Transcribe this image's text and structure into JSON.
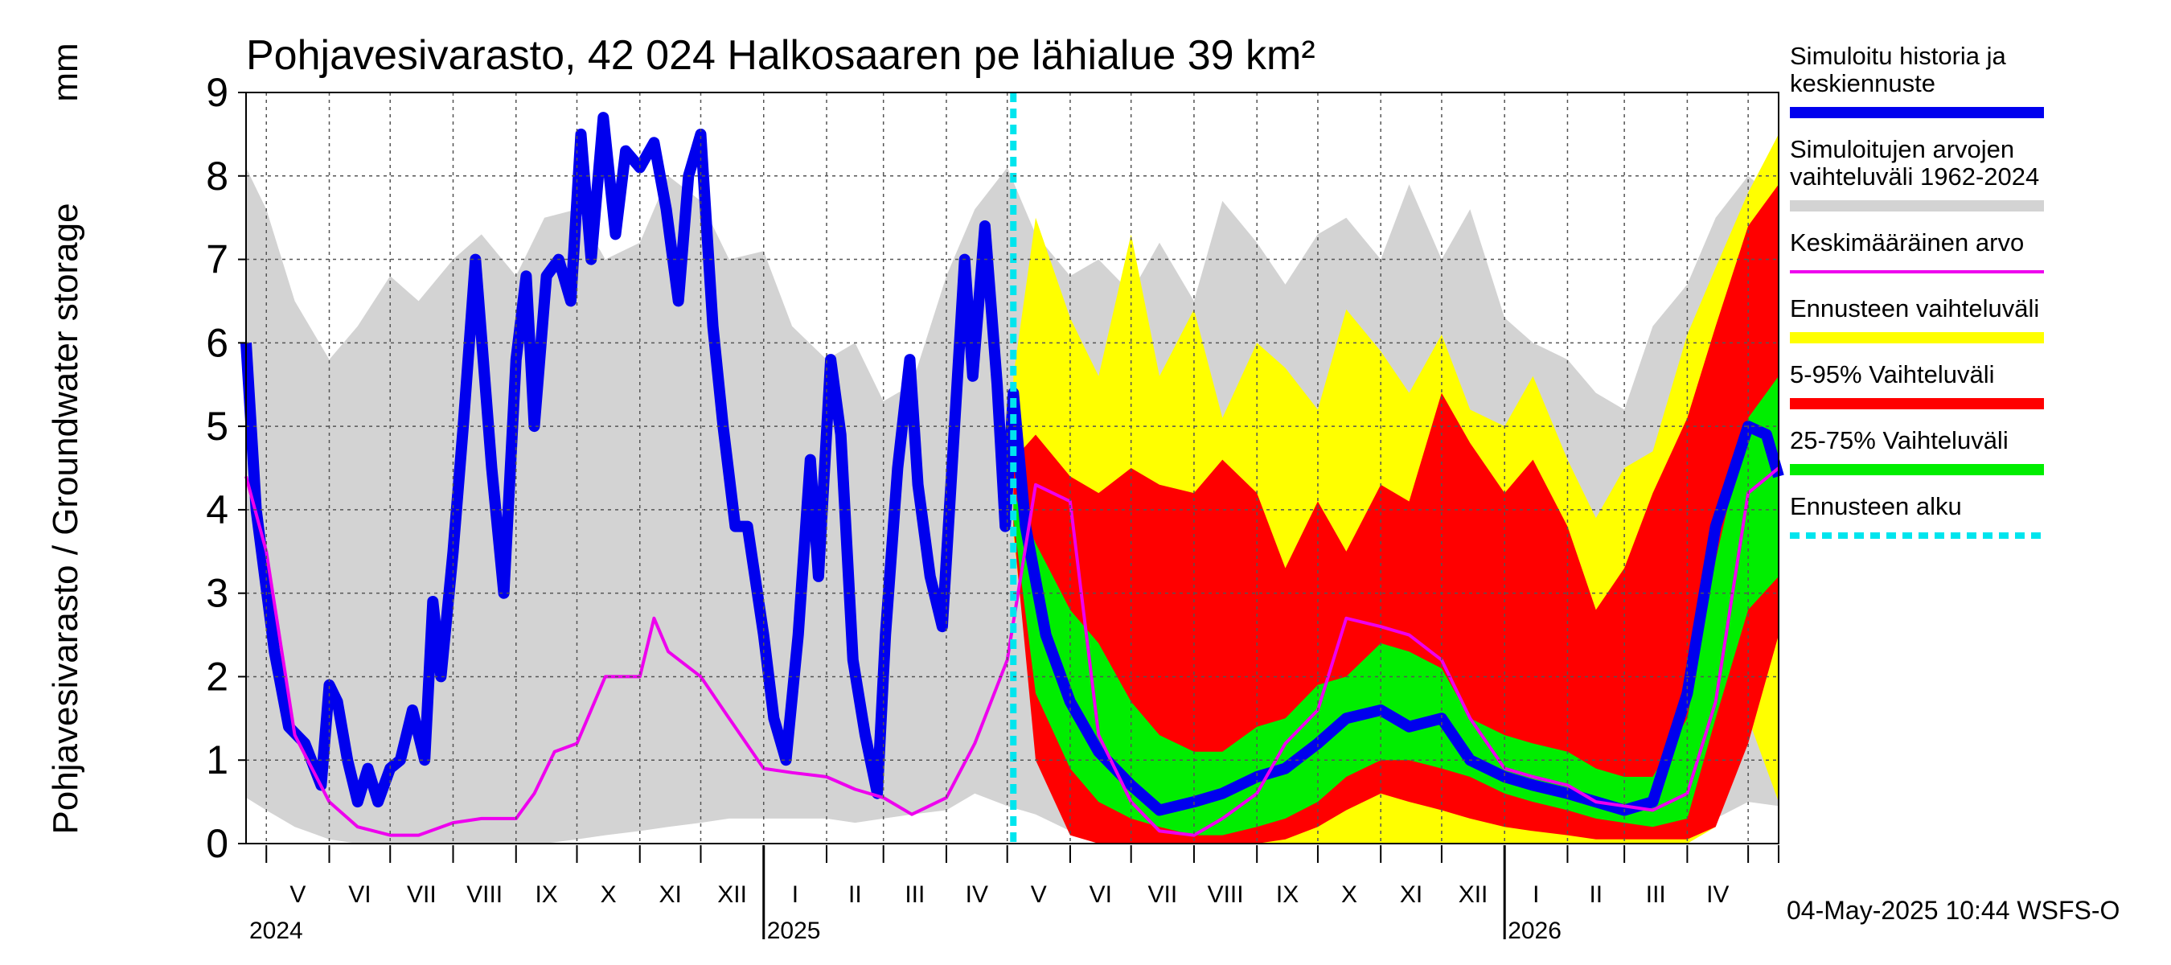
{
  "chart_data": {
    "type": "area",
    "title": "Pohjavesivarasto, 42 024 Halkosaaren pe lähialue 39 km²",
    "ylabel": "Pohjavesivarasto / Groundwater storage",
    "yunit": "mm",
    "ylim": [
      0,
      9
    ],
    "yticks": [
      "0",
      "1",
      "2",
      "3",
      "4",
      "5",
      "6",
      "7",
      "8",
      "9"
    ],
    "xlim": [
      "2024-04-21",
      "2026-05-16"
    ],
    "forecast_start": "2025-05-04",
    "timestamp": "04-May-2025 10:44 WSFS-O",
    "grid": true,
    "months": [
      {
        "label": "V",
        "start": "2024-05-01"
      },
      {
        "label": "VI",
        "start": "2024-06-01"
      },
      {
        "label": "VII",
        "start": "2024-07-01"
      },
      {
        "label": "VIII",
        "start": "2024-08-01"
      },
      {
        "label": "IX",
        "start": "2024-09-01"
      },
      {
        "label": "X",
        "start": "2024-10-01"
      },
      {
        "label": "XI",
        "start": "2024-11-01"
      },
      {
        "label": "XII",
        "start": "2024-12-01"
      },
      {
        "label": "I",
        "start": "2025-01-01"
      },
      {
        "label": "II",
        "start": "2025-02-01"
      },
      {
        "label": "III",
        "start": "2025-03-01"
      },
      {
        "label": "IV",
        "start": "2025-04-01"
      },
      {
        "label": "V",
        "start": "2025-05-01"
      },
      {
        "label": "VI",
        "start": "2025-06-01"
      },
      {
        "label": "VII",
        "start": "2025-07-01"
      },
      {
        "label": "VIII",
        "start": "2025-08-01"
      },
      {
        "label": "IX",
        "start": "2025-09-01"
      },
      {
        "label": "X",
        "start": "2025-10-01"
      },
      {
        "label": "XI",
        "start": "2025-11-01"
      },
      {
        "label": "XII",
        "start": "2025-12-01"
      },
      {
        "label": "I",
        "start": "2026-01-01"
      },
      {
        "label": "II",
        "start": "2026-02-01"
      },
      {
        "label": "III",
        "start": "2026-03-01"
      },
      {
        "label": "IV",
        "start": "2026-04-01"
      },
      {
        "label": "",
        "start": "2026-05-01"
      }
    ],
    "years": [
      {
        "label": "2024",
        "date": "2024-04-21",
        "boundary": null
      },
      {
        "label": "2025",
        "date": "2025-01-01",
        "boundary": "2025-01-01"
      },
      {
        "label": "2026",
        "date": "2026-01-01",
        "boundary": "2026-01-01"
      }
    ],
    "legend": [
      {
        "label": "Simuloitu historia ja keskiennuste",
        "color": "#0000ee",
        "style": "thick"
      },
      {
        "label": "Simuloitujen arvojen vaihteluväli 1962-2024",
        "color": "#d3d3d3",
        "style": "thick"
      },
      {
        "label": "Keskimääräinen arvo",
        "color": "#ee00ee",
        "style": "thin"
      },
      {
        "label": "Ennusteen vaihteluväli",
        "color": "#ffff00",
        "style": "thick"
      },
      {
        "label": "5-95% Vaihteluväli",
        "color": "#ff0000",
        "style": "thick"
      },
      {
        "label": "25-75% Vaihteluväli",
        "color": "#00ee00",
        "style": "thick"
      },
      {
        "label": "Ennusteen alku",
        "color": "#00e5ee",
        "style": "dashed"
      }
    ],
    "bands": [
      {
        "name": "Simuloitujen arvojen vaihteluväli 1962-2024",
        "color": "#d3d3d3",
        "x": [
          "2024-04-21",
          "2024-05-01",
          "2024-05-15",
          "2024-06-01",
          "2024-06-15",
          "2024-07-01",
          "2024-07-15",
          "2024-08-01",
          "2024-08-15",
          "2024-09-01",
          "2024-09-15",
          "2024-10-01",
          "2024-10-15",
          "2024-11-01",
          "2024-11-15",
          "2024-12-01",
          "2024-12-15",
          "2025-01-01",
          "2025-01-15",
          "2025-02-01",
          "2025-02-15",
          "2025-03-01",
          "2025-03-15",
          "2025-04-01",
          "2025-04-15",
          "2025-05-01",
          "2025-05-15",
          "2025-06-01",
          "2025-06-15",
          "2025-07-01",
          "2025-07-15",
          "2025-08-01",
          "2025-08-15",
          "2025-09-01",
          "2025-09-15",
          "2025-10-01",
          "2025-10-15",
          "2025-11-01",
          "2025-11-15",
          "2025-12-01",
          "2025-12-15",
          "2026-01-01",
          "2026-01-15",
          "2026-02-01",
          "2026-02-15",
          "2026-03-01",
          "2026-03-15",
          "2026-04-01",
          "2026-04-15",
          "2026-05-01",
          "2026-05-16"
        ],
        "low": [
          0.55,
          0.4,
          0.2,
          0.05,
          0,
          0,
          0,
          0,
          0,
          0,
          0,
          0.05,
          0.1,
          0.15,
          0.2,
          0.25,
          0.3,
          0.3,
          0.3,
          0.3,
          0.25,
          0.3,
          0.35,
          0.4,
          0.6,
          0.45,
          0.35,
          0.15,
          0.05,
          0,
          0,
          0,
          0,
          0,
          0,
          0.05,
          0.1,
          0.15,
          0.2,
          0.25,
          0.25,
          0.25,
          0.2,
          0.2,
          0.15,
          0.1,
          0.1,
          0.15,
          0.3,
          0.5,
          0.45
        ],
        "high": [
          8.1,
          7.6,
          6.5,
          5.8,
          6.2,
          6.8,
          6.5,
          7.0,
          7.3,
          6.8,
          7.5,
          7.6,
          7.0,
          7.2,
          8.0,
          7.7,
          7.0,
          7.1,
          6.2,
          5.8,
          6.0,
          5.3,
          5.5,
          6.8,
          7.6,
          8.1,
          7.3,
          6.8,
          7.0,
          6.6,
          7.2,
          6.5,
          7.7,
          7.2,
          6.7,
          7.3,
          7.5,
          7.0,
          7.9,
          7.0,
          7.6,
          6.3,
          6.0,
          5.8,
          5.4,
          5.2,
          6.2,
          6.7,
          7.5,
          8.0,
          7.7
        ]
      },
      {
        "name": "Ennusteen vaihteluväli",
        "color": "#ffff00",
        "x": [
          "2025-05-04",
          "2025-05-15",
          "2025-06-01",
          "2025-06-15",
          "2025-07-01",
          "2025-07-15",
          "2025-08-01",
          "2025-08-15",
          "2025-09-01",
          "2025-09-15",
          "2025-10-01",
          "2025-10-15",
          "2025-11-01",
          "2025-11-15",
          "2025-12-01",
          "2025-12-15",
          "2026-01-01",
          "2026-01-15",
          "2026-02-01",
          "2026-02-15",
          "2026-03-01",
          "2026-03-15",
          "2026-04-01",
          "2026-04-15",
          "2026-05-01",
          "2026-05-16"
        ],
        "low": [
          3.7,
          1.2,
          0.3,
          0.05,
          0,
          0,
          0,
          0,
          0,
          0,
          0,
          0,
          0,
          0,
          0,
          0,
          0,
          0,
          0,
          0,
          0,
          0,
          0,
          0.2,
          1.5,
          0.5
        ],
        "high": [
          5.6,
          7.5,
          6.3,
          5.6,
          7.3,
          5.6,
          6.4,
          5.1,
          6.0,
          5.7,
          5.2,
          6.4,
          5.9,
          5.4,
          6.1,
          5.2,
          5.0,
          5.6,
          4.6,
          3.9,
          4.5,
          4.7,
          6.1,
          6.9,
          7.8,
          8.5
        ]
      },
      {
        "name": "5-95% Vaihteluväli",
        "color": "#ff0000",
        "x": [
          "2025-05-04",
          "2025-05-15",
          "2025-06-01",
          "2025-06-15",
          "2025-07-01",
          "2025-07-15",
          "2025-08-01",
          "2025-08-15",
          "2025-09-01",
          "2025-09-15",
          "2025-10-01",
          "2025-10-15",
          "2025-11-01",
          "2025-11-15",
          "2025-12-01",
          "2025-12-15",
          "2026-01-01",
          "2026-01-15",
          "2026-02-01",
          "2026-02-15",
          "2026-03-01",
          "2026-03-15",
          "2026-04-01",
          "2026-04-15",
          "2026-05-01",
          "2026-05-16"
        ],
        "low": [
          3.8,
          1.0,
          0.1,
          0,
          0,
          0,
          0,
          0,
          0,
          0.05,
          0.2,
          0.4,
          0.6,
          0.5,
          0.4,
          0.3,
          0.2,
          0.15,
          0.1,
          0.05,
          0.05,
          0.05,
          0.05,
          0.2,
          1.2,
          2.5
        ],
        "high": [
          4.6,
          4.9,
          4.4,
          4.2,
          4.5,
          4.3,
          4.2,
          4.6,
          4.2,
          3.3,
          4.1,
          3.5,
          4.3,
          4.1,
          5.4,
          4.8,
          4.2,
          4.6,
          3.8,
          2.8,
          3.3,
          4.2,
          5.1,
          6.2,
          7.4,
          7.9
        ]
      },
      {
        "name": "25-75% Vaihteluväli",
        "color": "#00ee00",
        "x": [
          "2025-05-04",
          "2025-05-15",
          "2025-06-01",
          "2025-06-15",
          "2025-07-01",
          "2025-07-15",
          "2025-08-01",
          "2025-08-15",
          "2025-09-01",
          "2025-09-15",
          "2025-10-01",
          "2025-10-15",
          "2025-11-01",
          "2025-11-15",
          "2025-12-01",
          "2025-12-15",
          "2026-01-01",
          "2026-01-15",
          "2026-02-01",
          "2026-02-15",
          "2026-03-01",
          "2026-03-15",
          "2026-04-01",
          "2026-04-15",
          "2026-05-01",
          "2026-05-16"
        ],
        "low": [
          3.9,
          1.8,
          0.9,
          0.5,
          0.3,
          0.2,
          0.1,
          0.1,
          0.2,
          0.3,
          0.5,
          0.8,
          1.0,
          1.0,
          0.9,
          0.8,
          0.6,
          0.5,
          0.4,
          0.3,
          0.25,
          0.2,
          0.3,
          1.5,
          2.8,
          3.2
        ],
        "high": [
          4.2,
          3.6,
          2.8,
          2.4,
          1.7,
          1.3,
          1.1,
          1.1,
          1.4,
          1.5,
          1.9,
          2.0,
          2.4,
          2.3,
          2.1,
          1.5,
          1.3,
          1.2,
          1.1,
          0.9,
          0.8,
          0.8,
          1.5,
          3.4,
          5.1,
          5.6
        ]
      }
    ],
    "series": [
      {
        "name": "Simuloitu historia ja keskiennuste",
        "color": "#0000ee",
        "x": [
          "2024-04-21",
          "2024-04-26",
          "2024-05-05",
          "2024-05-12",
          "2024-05-20",
          "2024-05-28",
          "2024-06-01",
          "2024-06-05",
          "2024-06-10",
          "2024-06-15",
          "2024-06-20",
          "2024-06-25",
          "2024-07-01",
          "2024-07-06",
          "2024-07-12",
          "2024-07-18",
          "2024-07-22",
          "2024-07-26",
          "2024-08-01",
          "2024-08-06",
          "2024-08-12",
          "2024-08-20",
          "2024-08-26",
          "2024-09-01",
          "2024-09-06",
          "2024-09-10",
          "2024-09-16",
          "2024-09-22",
          "2024-09-28",
          "2024-10-03",
          "2024-10-08",
          "2024-10-14",
          "2024-10-20",
          "2024-10-25",
          "2024-11-01",
          "2024-11-08",
          "2024-11-14",
          "2024-11-20",
          "2024-11-25",
          "2024-12-01",
          "2024-12-07",
          "2024-12-12",
          "2024-12-18",
          "2024-12-24",
          "2025-01-01",
          "2025-01-06",
          "2025-01-12",
          "2025-01-18",
          "2025-01-24",
          "2025-01-28",
          "2025-02-03",
          "2025-02-08",
          "2025-02-14",
          "2025-02-20",
          "2025-02-26",
          "2025-03-02",
          "2025-03-08",
          "2025-03-14",
          "2025-03-18",
          "2025-03-24",
          "2025-03-30",
          "2025-04-05",
          "2025-04-10",
          "2025-04-14",
          "2025-04-20",
          "2025-04-26",
          "2025-04-30",
          "2025-05-04",
          "2025-05-10",
          "2025-05-20",
          "2025-06-01",
          "2025-06-15",
          "2025-07-01",
          "2025-07-15",
          "2025-08-01",
          "2025-08-15",
          "2025-09-01",
          "2025-09-15",
          "2025-10-01",
          "2025-10-15",
          "2025-11-01",
          "2025-11-15",
          "2025-12-01",
          "2025-12-15",
          "2026-01-01",
          "2026-01-15",
          "2026-02-01",
          "2026-02-15",
          "2026-03-01",
          "2026-03-15",
          "2026-04-01",
          "2026-04-15",
          "2026-05-01",
          "2026-05-10",
          "2026-05-16"
        ],
        "y": [
          6.0,
          4.0,
          2.3,
          1.4,
          1.2,
          0.7,
          1.9,
          1.7,
          1.0,
          0.5,
          0.9,
          0.5,
          0.9,
          1.0,
          1.6,
          1.0,
          2.9,
          2.0,
          3.5,
          5.0,
          7.0,
          4.5,
          3.0,
          5.8,
          6.8,
          5.0,
          6.8,
          7.0,
          6.5,
          8.5,
          7.0,
          8.7,
          7.3,
          8.3,
          8.1,
          8.4,
          7.6,
          6.5,
          8.0,
          8.5,
          6.2,
          5.0,
          3.8,
          3.8,
          2.5,
          1.5,
          1.0,
          2.5,
          4.6,
          3.2,
          5.8,
          4.9,
          2.2,
          1.3,
          0.6,
          2.5,
          4.5,
          5.8,
          4.3,
          3.2,
          2.6,
          5.0,
          7.0,
          5.6,
          7.4,
          5.5,
          3.8,
          5.4,
          3.8,
          2.5,
          1.7,
          1.1,
          0.7,
          0.4,
          0.5,
          0.6,
          0.8,
          0.9,
          1.2,
          1.5,
          1.6,
          1.4,
          1.5,
          1.0,
          0.8,
          0.7,
          0.6,
          0.5,
          0.4,
          0.5,
          1.8,
          3.8,
          5.0,
          4.9,
          4.4
        ]
      },
      {
        "name": "Keskimääräinen arvo",
        "color": "#ee00ee",
        "x": [
          "2024-04-21",
          "2024-05-01",
          "2024-05-15",
          "2024-06-01",
          "2024-06-15",
          "2024-07-01",
          "2024-07-15",
          "2024-08-01",
          "2024-08-15",
          "2024-09-01",
          "2024-09-10",
          "2024-09-20",
          "2024-10-01",
          "2024-10-15",
          "2024-11-01",
          "2024-11-08",
          "2024-11-15",
          "2024-12-01",
          "2024-12-15",
          "2025-01-01",
          "2025-01-15",
          "2025-02-01",
          "2025-02-15",
          "2025-03-01",
          "2025-03-15",
          "2025-04-01",
          "2025-04-15",
          "2025-05-01",
          "2025-05-15",
          "2025-06-01",
          "2025-06-15",
          "2025-07-01",
          "2025-07-15",
          "2025-08-01",
          "2025-08-15",
          "2025-09-01",
          "2025-09-15",
          "2025-10-01",
          "2025-10-15",
          "2025-11-01",
          "2025-11-15",
          "2025-12-01",
          "2025-12-15",
          "2026-01-01",
          "2026-01-15",
          "2026-02-01",
          "2026-02-15",
          "2026-03-01",
          "2026-03-15",
          "2026-04-01",
          "2026-04-15",
          "2026-05-01",
          "2026-05-16"
        ],
        "y": [
          4.4,
          3.5,
          1.3,
          0.5,
          0.2,
          0.1,
          0.1,
          0.25,
          0.3,
          0.3,
          0.6,
          1.1,
          1.2,
          2.0,
          2.0,
          2.7,
          2.3,
          2.0,
          1.5,
          0.9,
          0.85,
          0.8,
          0.65,
          0.55,
          0.35,
          0.55,
          1.2,
          2.2,
          4.3,
          4.1,
          1.3,
          0.5,
          0.15,
          0.1,
          0.3,
          0.6,
          1.2,
          1.6,
          2.7,
          2.6,
          2.5,
          2.2,
          1.5,
          0.9,
          0.8,
          0.7,
          0.5,
          0.45,
          0.4,
          0.6,
          1.7,
          4.2,
          4.5
        ]
      }
    ]
  }
}
